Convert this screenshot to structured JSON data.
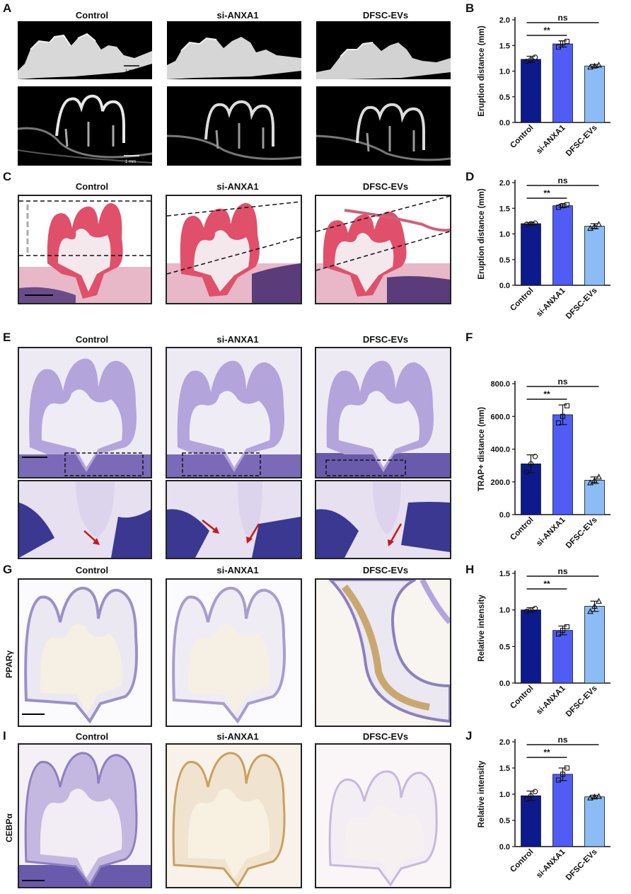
{
  "groups": [
    "Control",
    "si-ANXA1",
    "DFSC-EVs"
  ],
  "panels": {
    "A": "A",
    "B": "B",
    "C": "C",
    "D": "D",
    "E": "E",
    "F": "F",
    "G": "G",
    "H": "H",
    "I": "I",
    "J": "J"
  },
  "stains": {
    "G": "PPARγ",
    "I": "CEBPα"
  },
  "scalebars": {
    "A": "1 mm"
  },
  "colors": {
    "Control": "#0d1a8c",
    "si-ANXA1": "#4f5cf5",
    "DFSC-EVs": "#8bbcf6"
  },
  "chart_data": [
    {
      "panel": "B",
      "type": "bar",
      "categories": [
        "Control",
        "si-ANXA1",
        "DFSC-EVs"
      ],
      "values": [
        1.23,
        1.53,
        1.1
      ],
      "errors": [
        0.06,
        0.06,
        0.03
      ],
      "points": [
        [
          1.19,
          1.22,
          1.27
        ],
        [
          1.47,
          1.55,
          1.58
        ],
        [
          1.08,
          1.1,
          1.12
        ]
      ],
      "ylabel": "Eruption distance (mm)",
      "ylim": [
        0,
        2.0
      ],
      "yticks": [
        "0.0",
        "0.5",
        "1.0",
        "1.5",
        "2.0"
      ],
      "ytick_values": [
        0,
        0.5,
        1.0,
        1.5,
        2.0
      ],
      "sig": [
        {
          "from": 0,
          "to": 1,
          "label": "**"
        },
        {
          "from": 0,
          "to": 2,
          "label": "ns"
        }
      ]
    },
    {
      "panel": "D",
      "type": "bar",
      "categories": [
        "Control",
        "si-ANXA1",
        "DFSC-EVs"
      ],
      "values": [
        1.2,
        1.55,
        1.15
      ],
      "errors": [
        0.02,
        0.03,
        0.05
      ],
      "points": [
        [
          1.19,
          1.2,
          1.21
        ],
        [
          1.52,
          1.55,
          1.57
        ],
        [
          1.11,
          1.15,
          1.19
        ]
      ],
      "ylabel": "Eruption distance (mm)",
      "ylim": [
        0,
        2.0
      ],
      "yticks": [
        "0.0",
        "0.5",
        "1.0",
        "1.5",
        "2.0"
      ],
      "ytick_values": [
        0,
        0.5,
        1.0,
        1.5,
        2.0
      ],
      "sig": [
        {
          "from": 0,
          "to": 1,
          "label": "**"
        },
        {
          "from": 0,
          "to": 2,
          "label": "ns"
        }
      ]
    },
    {
      "panel": "F",
      "type": "bar",
      "categories": [
        "Control",
        "si-ANXA1",
        "DFSC-EVs"
      ],
      "values": [
        310,
        610,
        210
      ],
      "errors": [
        55,
        60,
        20
      ],
      "points": [
        [
          260,
          310,
          355
        ],
        [
          560,
          600,
          665
        ],
        [
          195,
          210,
          230
        ]
      ],
      "ylabel": "TRAP+ distance (mm)",
      "ylim": [
        0,
        800
      ],
      "yticks": [
        "0.0",
        "200.0",
        "400.0",
        "600.0",
        "800.0"
      ],
      "ytick_values": [
        0,
        200,
        400,
        600,
        800
      ],
      "sig": [
        {
          "from": 0,
          "to": 1,
          "label": "**"
        },
        {
          "from": 0,
          "to": 2,
          "label": "ns"
        }
      ]
    },
    {
      "panel": "H",
      "type": "bar",
      "categories": [
        "Control",
        "si-ANXA1",
        "DFSC-EVs"
      ],
      "values": [
        1.0,
        0.72,
        1.05
      ],
      "errors": [
        0.03,
        0.06,
        0.07
      ],
      "points": [
        [
          0.98,
          1.0,
          1.02
        ],
        [
          0.67,
          0.72,
          0.77
        ],
        [
          0.98,
          1.05,
          1.12
        ]
      ],
      "ylabel": "Relative intensity",
      "ylim": [
        0,
        1.5
      ],
      "yticks": [
        "0.0",
        "0.5",
        "1.0",
        "1.5"
      ],
      "ytick_values": [
        0,
        0.5,
        1.0,
        1.5
      ],
      "sig": [
        {
          "from": 0,
          "to": 1,
          "label": "**"
        },
        {
          "from": 0,
          "to": 2,
          "label": "ns"
        }
      ]
    },
    {
      "panel": "J",
      "type": "bar",
      "categories": [
        "Control",
        "si-ANXA1",
        "DFSC-EVs"
      ],
      "values": [
        0.97,
        1.38,
        0.95
      ],
      "errors": [
        0.09,
        0.12,
        0.03
      ],
      "points": [
        [
          0.9,
          0.97,
          1.05
        ],
        [
          1.27,
          1.38,
          1.5
        ],
        [
          0.93,
          0.95,
          0.96
        ]
      ],
      "ylabel": "Relative intensity",
      "ylim": [
        0,
        2.0
      ],
      "yticks": [
        "0.0",
        "0.5",
        "1.0",
        "1.5",
        "2.0"
      ],
      "ytick_values": [
        0,
        0.5,
        1.0,
        1.5,
        2.0
      ],
      "sig": [
        {
          "from": 0,
          "to": 1,
          "label": "**"
        },
        {
          "from": 0,
          "to": 2,
          "label": "ns"
        }
      ]
    }
  ]
}
